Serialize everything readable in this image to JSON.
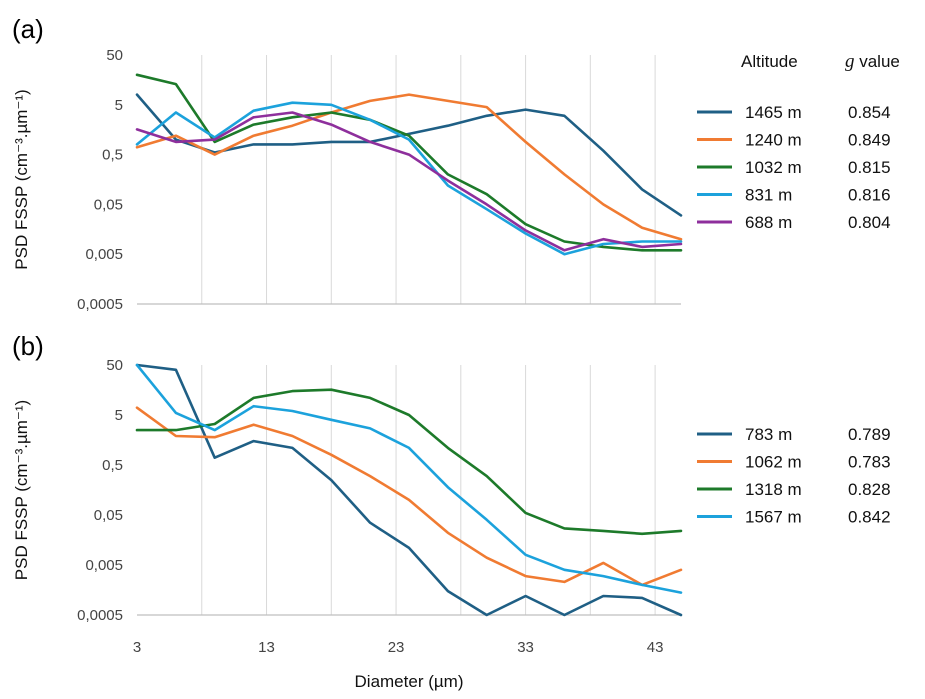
{
  "chart_data": [
    {
      "type": "line",
      "panel_label": "(a)",
      "ylabel": "PSD FSSP (cm⁻³.µm⁻¹)",
      "xlabel": "",
      "yscale": "log",
      "ylim": [
        0.0005,
        50
      ],
      "yticks": [
        "50",
        "5",
        "0,5",
        "0,05",
        "0,005",
        "0,0005"
      ],
      "ytick_values": [
        50,
        5,
        0.5,
        0.05,
        0.005,
        0.0005
      ],
      "xlim": [
        3,
        45
      ],
      "xticks": [],
      "grid": "vertical",
      "legend_headers": {
        "altitude": "Altitude",
        "g_symbol": "g",
        "g_suffix": " value"
      },
      "x": [
        3,
        6,
        9,
        12,
        15,
        18,
        21,
        24,
        27,
        30,
        33,
        36,
        39,
        42,
        45
      ],
      "series": [
        {
          "name": "1465 m",
          "g": "0.854",
          "color": "#1f5f85",
          "values": [
            8,
            1.0,
            0.55,
            0.8,
            0.8,
            0.9,
            0.9,
            1.3,
            1.9,
            3.0,
            4.0,
            3.0,
            0.6,
            0.1,
            0.03
          ]
        },
        {
          "name": "1240 m",
          "g": "0.849",
          "color": "#f07b32",
          "values": [
            0.7,
            1.2,
            0.5,
            1.2,
            1.9,
            3.5,
            6.0,
            8.0,
            6.0,
            4.5,
            0.9,
            0.2,
            0.05,
            0.017,
            0.01
          ]
        },
        {
          "name": "1032 m",
          "g": "0.815",
          "color": "#1d7a2a",
          "values": [
            20,
            13,
            0.9,
            2.0,
            2.8,
            3.5,
            2.5,
            1.2,
            0.2,
            0.08,
            0.02,
            0.009,
            0.007,
            0.006,
            0.006
          ]
        },
        {
          "name": "831 m",
          "g": "0.816",
          "color": "#1ca2dc",
          "values": [
            0.8,
            3.5,
            1.1,
            3.8,
            5.5,
            5.0,
            2.5,
            1.0,
            0.12,
            0.04,
            0.013,
            0.005,
            0.008,
            0.009,
            0.009
          ]
        },
        {
          "name": "688 m",
          "g": "0.804",
          "color": "#8e2f9c",
          "values": [
            1.6,
            0.9,
            1.0,
            2.8,
            3.5,
            2.0,
            0.9,
            0.5,
            0.15,
            0.05,
            0.015,
            0.006,
            0.01,
            0.007,
            0.008
          ]
        }
      ]
    },
    {
      "type": "line",
      "panel_label": "(b)",
      "ylabel": "PSD FSSP (cm⁻³.µm⁻¹)",
      "xlabel": "Diameter (µm)",
      "yscale": "log",
      "ylim": [
        0.0005,
        50
      ],
      "yticks": [
        "50",
        "5",
        "0,5",
        "0,05",
        "0,005",
        "0,0005"
      ],
      "ytick_values": [
        50,
        5,
        0.5,
        0.05,
        0.005,
        0.0005
      ],
      "xlim": [
        3,
        45
      ],
      "xticks": [
        "3",
        "13",
        "23",
        "33",
        "43"
      ],
      "xtick_values": [
        3,
        13,
        23,
        33,
        43
      ],
      "grid": "vertical",
      "x": [
        3,
        6,
        9,
        12,
        15,
        18,
        21,
        24,
        27,
        30,
        33,
        36,
        39,
        42,
        45
      ],
      "series": [
        {
          "name": "783 m",
          "g": "0.789",
          "color": "#1f5f85",
          "values": [
            140,
            40,
            0.7,
            1.5,
            1.1,
            0.25,
            0.035,
            0.011,
            0.0015,
            0.0005,
            0.0012,
            0.0002,
            0.0012,
            0.0011,
            0.0004
          ]
        },
        {
          "name": "1062 m",
          "g": "0.783",
          "color": "#f07b32",
          "values": [
            7,
            1.9,
            1.8,
            3.2,
            1.9,
            0.8,
            0.3,
            0.1,
            0.022,
            0.007,
            0.003,
            0.0023,
            0.0055,
            0.002,
            0.004
          ]
        },
        {
          "name": "1318 m",
          "g": "0.828",
          "color": "#1d7a2a",
          "values": [
            2.5,
            2.5,
            3.3,
            11,
            15,
            16,
            11,
            5,
            1.1,
            0.3,
            0.055,
            0.027,
            0.024,
            0.021,
            0.024
          ]
        },
        {
          "name": "1567 m",
          "g": "0.842",
          "color": "#1ca2dc",
          "values": [
            80,
            5.5,
            2.5,
            7.5,
            6,
            4,
            2.7,
            1.1,
            0.18,
            0.04,
            0.008,
            0.004,
            0.003,
            0.002,
            0.0014
          ]
        }
      ]
    }
  ]
}
